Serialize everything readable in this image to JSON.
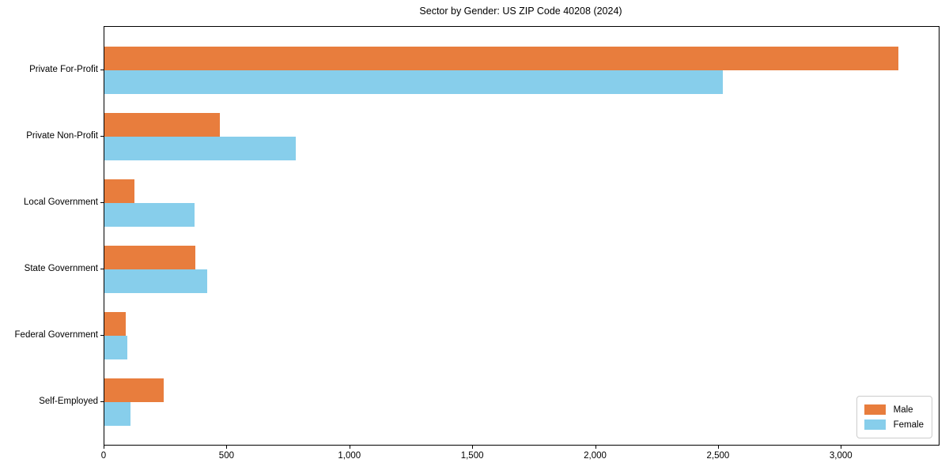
{
  "chart_data": {
    "type": "bar",
    "orientation": "horizontal",
    "title": "Sector by Gender: US ZIP Code 40208 (2024)",
    "categories": [
      "Private For-Profit",
      "Private Non-Profit",
      "Local Government",
      "State Government",
      "Federal Government",
      "Self-Employed"
    ],
    "series": [
      {
        "name": "Male",
        "color": "#E87D3D",
        "values": [
          3230,
          470,
          122,
          370,
          88,
          240
        ]
      },
      {
        "name": "Female",
        "color": "#87CEEB",
        "values": [
          2515,
          780,
          366,
          418,
          94,
          106
        ]
      }
    ],
    "xlabel": "",
    "ylabel": "",
    "xlim": [
      0,
      3395
    ],
    "x_ticks": [
      0,
      500,
      1000,
      1500,
      2000,
      2500,
      3000
    ],
    "x_tick_labels": [
      "0",
      "500",
      "1,000",
      "1,500",
      "2,000",
      "2,500",
      "3,000"
    ],
    "grid": false,
    "legend_position": "lower right",
    "frame_color": "#000000"
  }
}
